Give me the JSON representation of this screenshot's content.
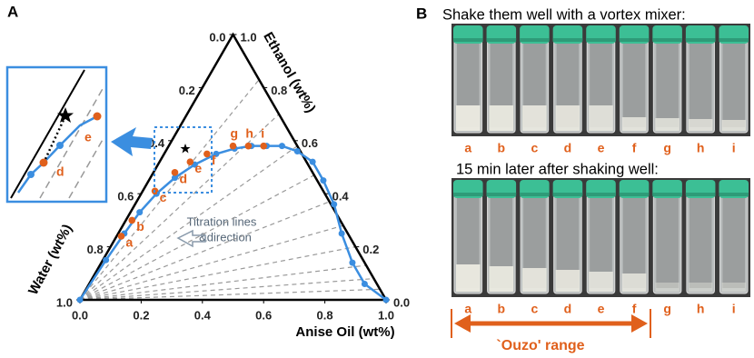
{
  "chart_data": {
    "type": "ternary",
    "panel_label": "A",
    "axis_labels": {
      "top": "Ethanol (wt%)",
      "left": "Water (wt%)",
      "bottom": "Anise Oil (wt%)"
    },
    "water_ticks": [
      {
        "value": 0,
        "label": "0.0"
      },
      0.2,
      0.4,
      0.6,
      0.8,
      {
        "value": 1,
        "label": "1.0"
      }
    ],
    "ethanol_ticks": [
      {
        "value": 0,
        "label": "0.0"
      },
      0.2,
      0.4,
      0.6,
      0.8,
      {
        "value": 1,
        "label": "1.0"
      }
    ],
    "anise_ticks": [
      {
        "value": 0,
        "label": "0.0"
      },
      0.2,
      0.4,
      0.6,
      0.8,
      {
        "value": 1,
        "label": "1.0"
      }
    ],
    "curve": {
      "color": "#3b8ee0",
      "anise_oil": [
        0,
        0.01,
        0.02,
        0.03,
        0.05,
        0.08,
        0.12,
        0.17,
        0.22,
        0.27,
        0.32,
        0.37,
        0.43,
        0.5,
        0.57,
        0.65,
        0.73,
        0.82,
        0.9,
        1
      ],
      "ethanol": [
        0,
        0.15,
        0.25,
        0.33,
        0.4,
        0.46,
        0.51,
        0.55,
        0.57,
        0.58,
        0.58,
        0.58,
        0.56,
        0.52,
        0.45,
        0.36,
        0.25,
        0.14,
        0.06,
        0
      ]
    },
    "points": {
      "color": "#e0601c",
      "names": [
        "a",
        "b",
        "c",
        "d",
        "e",
        "f",
        "g",
        "h",
        "i"
      ],
      "anise_oil": [
        0.015,
        0.02,
        0.04,
        0.07,
        0.1,
        0.14,
        0.21,
        0.26,
        0.31
      ],
      "ethanol": [
        0.24,
        0.3,
        0.41,
        0.48,
        0.52,
        0.55,
        0.58,
        0.58,
        0.58
      ]
    },
    "titration_lines": {
      "ethanol": [
        0.04,
        0.08,
        0.13,
        0.2,
        0.28,
        0.37,
        0.47,
        0.58,
        0.7,
        0.83
      ]
    },
    "annotation": [
      "Titration lines",
      "&direction"
    ]
  },
  "photos": {
    "panel_label": "B",
    "title_top": "Shake them well with a vortex mixer:",
    "title_bottom": "15 min later after shaking well:",
    "labels_top": [
      "a",
      "b",
      "c",
      "d",
      "e",
      "f",
      "g",
      "h",
      "i"
    ],
    "labels_bottom": [
      "a",
      "b",
      "c",
      "d",
      "e",
      "f",
      "g",
      "h",
      "i"
    ],
    "range_label": "`Ouzo' range"
  }
}
